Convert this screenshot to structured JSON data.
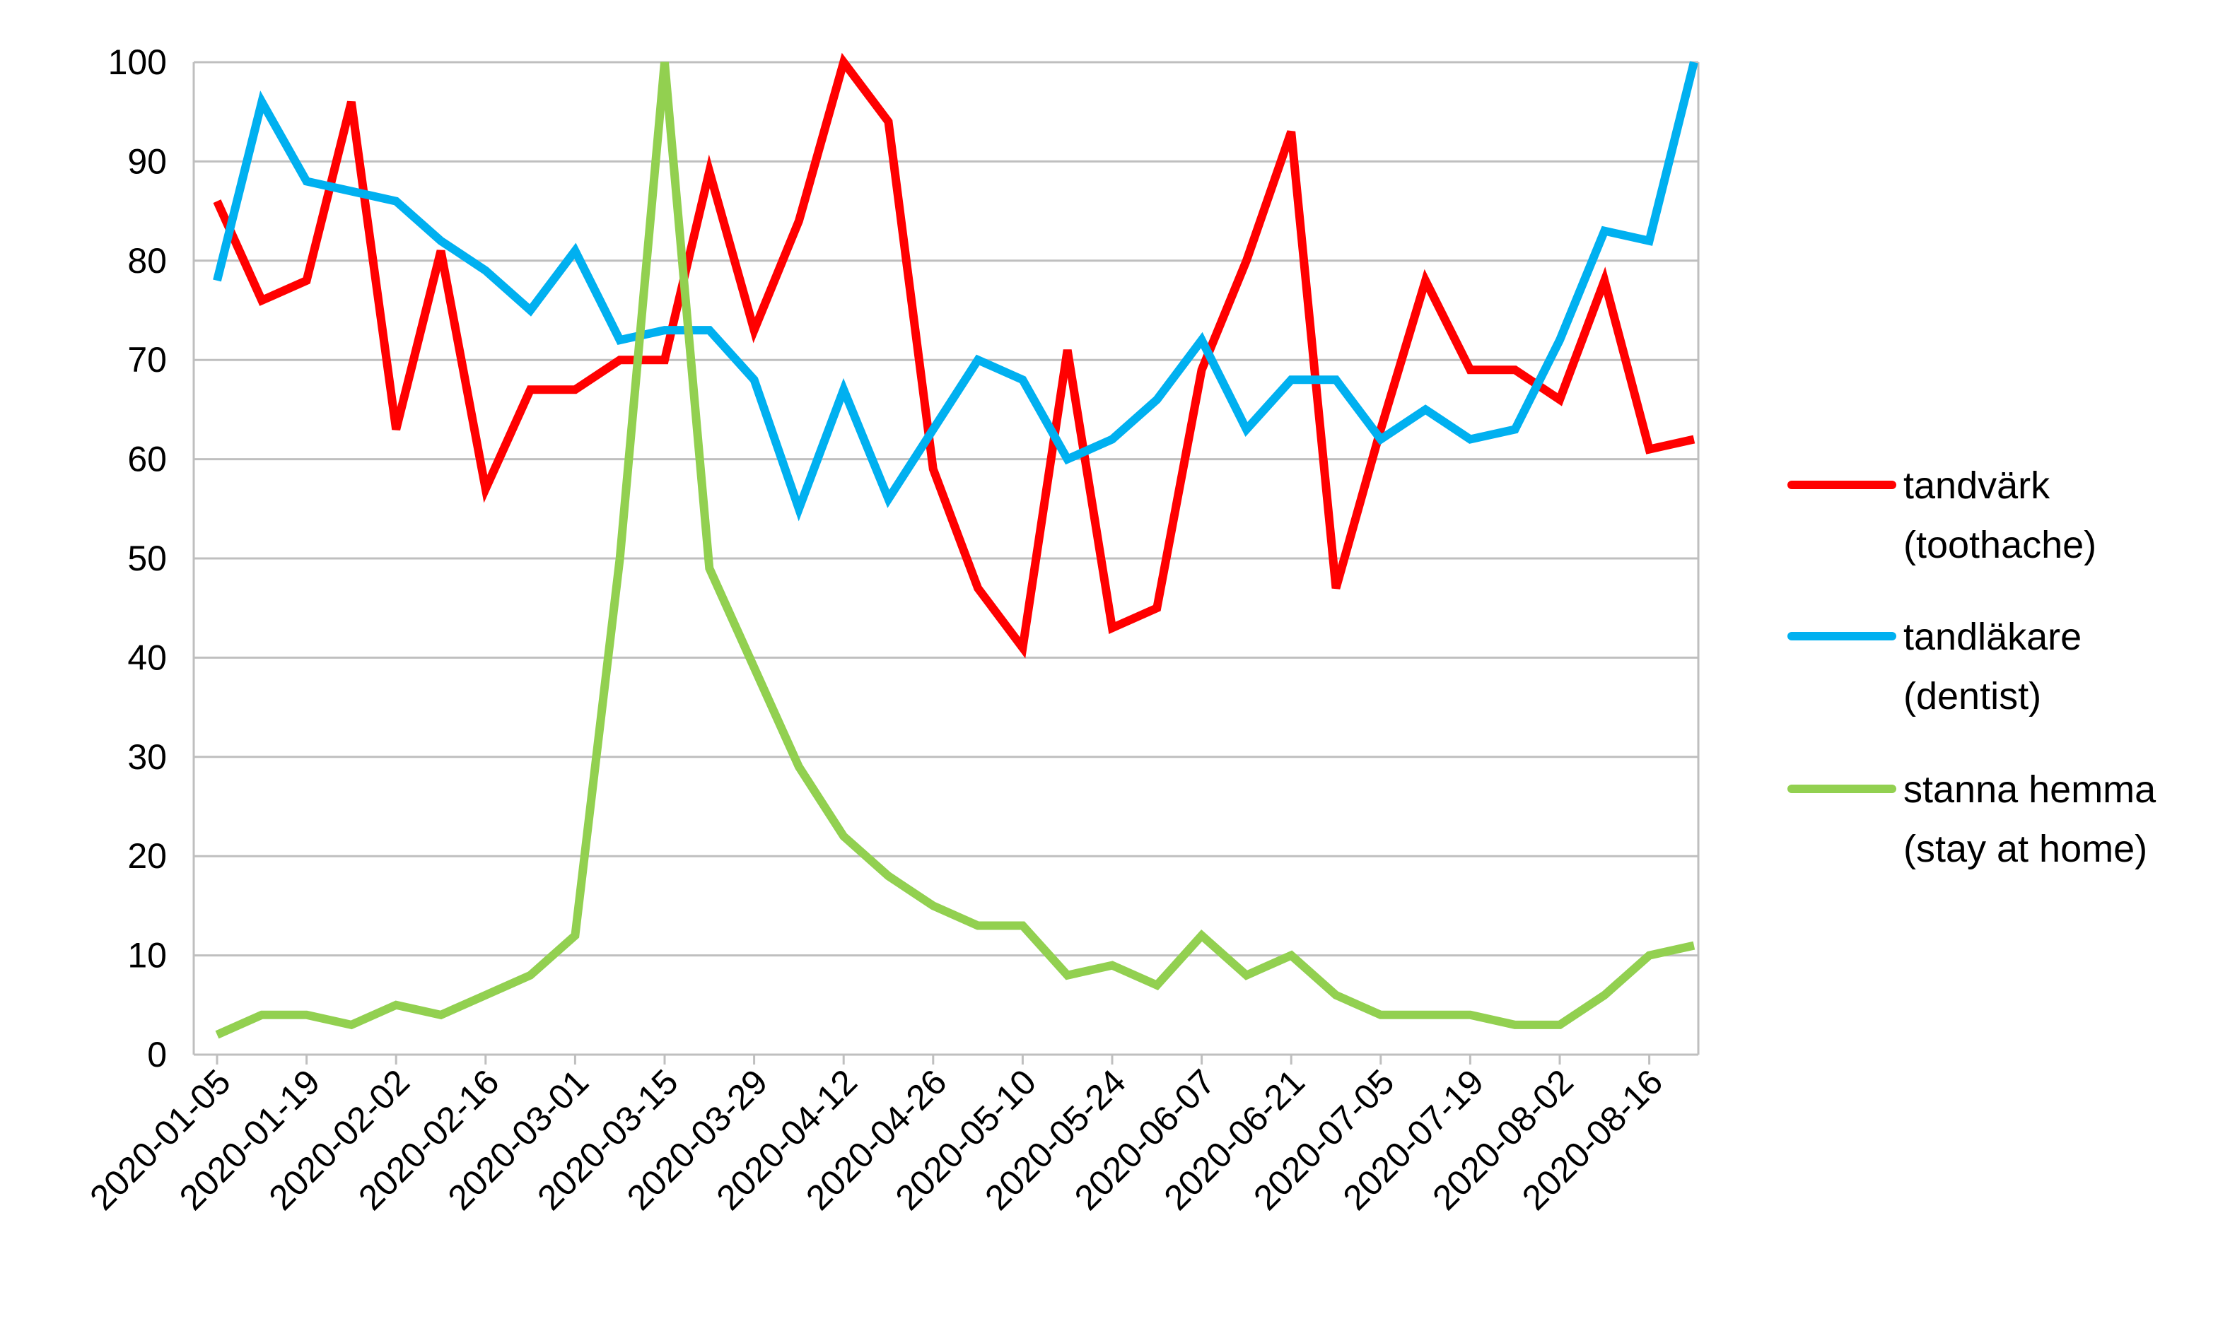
{
  "chart_data": {
    "type": "line",
    "title": "",
    "xlabel": "",
    "ylabel": "",
    "ylim": [
      0,
      100
    ],
    "y_ticks": [
      0,
      10,
      20,
      30,
      40,
      50,
      60,
      70,
      80,
      90,
      100
    ],
    "grid": true,
    "legend_position": "right",
    "x": [
      "2020-01-05",
      "2020-01-12",
      "2020-01-19",
      "2020-01-26",
      "2020-02-02",
      "2020-02-09",
      "2020-02-16",
      "2020-02-23",
      "2020-03-01",
      "2020-03-08",
      "2020-03-15",
      "2020-03-22",
      "2020-03-29",
      "2020-04-05",
      "2020-04-12",
      "2020-04-19",
      "2020-04-26",
      "2020-05-03",
      "2020-05-10",
      "2020-05-17",
      "2020-05-24",
      "2020-05-31",
      "2020-06-07",
      "2020-06-14",
      "2020-06-21",
      "2020-06-28",
      "2020-07-05",
      "2020-07-12",
      "2020-07-19",
      "2020-07-26",
      "2020-08-02",
      "2020-08-09",
      "2020-08-16",
      "2020-08-23"
    ],
    "x_tick_labels": [
      "2020-01-05",
      "2020-01-19",
      "2020-02-02",
      "2020-02-16",
      "2020-03-01",
      "2020-03-15",
      "2020-03-29",
      "2020-04-12",
      "2020-04-26",
      "2020-05-10",
      "2020-05-24",
      "2020-06-07",
      "2020-06-21",
      "2020-07-05",
      "2020-07-19",
      "2020-08-02",
      "2020-08-16"
    ],
    "series": [
      {
        "name": "tandvärk",
        "name_line2": "(toothache)",
        "color": "#ff0000",
        "values": [
          86,
          76,
          78,
          96,
          63,
          81,
          57,
          67,
          67,
          70,
          70,
          89,
          73,
          84,
          100,
          94,
          59,
          47,
          41,
          71,
          43,
          45,
          69,
          80,
          93,
          47,
          63,
          78,
          69,
          69,
          66,
          78,
          61,
          62
        ]
      },
      {
        "name": "tandläkare",
        "name_line2": "(dentist)",
        "color": "#00b0f0",
        "values": [
          78,
          96,
          88,
          87,
          86,
          82,
          79,
          75,
          81,
          72,
          73,
          73,
          68,
          55,
          67,
          56,
          63,
          70,
          68,
          60,
          62,
          66,
          72,
          63,
          68,
          68,
          62,
          65,
          62,
          63,
          72,
          83,
          82,
          100
        ]
      },
      {
        "name": "stanna hemma",
        "name_line2": "(stay at home)",
        "color": "#92d050",
        "values": [
          2,
          4,
          4,
          3,
          5,
          4,
          6,
          8,
          12,
          50,
          100,
          49,
          39,
          29,
          22,
          18,
          15,
          13,
          13,
          8,
          9,
          7,
          12,
          8,
          10,
          6,
          4,
          4,
          4,
          3,
          3,
          6,
          10,
          11
        ]
      }
    ]
  }
}
